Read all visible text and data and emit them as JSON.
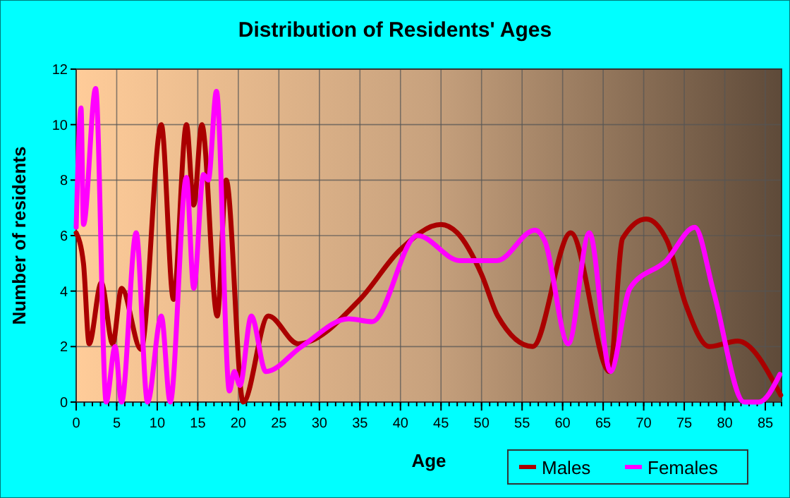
{
  "chart_data": {
    "type": "line",
    "title": "Distribution of Residents' Ages",
    "xlabel": "Age",
    "ylabel": "Number of residents",
    "xlim": [
      0,
      87
    ],
    "xticks": [
      0,
      5,
      10,
      15,
      20,
      25,
      30,
      35,
      40,
      45,
      50,
      55,
      60,
      65,
      70,
      75,
      80,
      85
    ],
    "ylim": [
      0,
      12
    ],
    "yticks": [
      0,
      2,
      4,
      6,
      8,
      10,
      12
    ],
    "grid": true,
    "legend": "bottom right",
    "line_style": "solid",
    "marker": "none",
    "series": [
      {
        "name": "Males",
        "color": "#aa0000",
        "x": [
          0,
          0.9,
          1.6,
          3.1,
          4.5,
          5.6,
          8,
          10.5,
          12,
          13.6,
          14.5,
          15.5,
          17.4,
          18.5,
          20.6,
          23.7,
          27.4,
          35,
          40,
          45,
          47,
          50,
          52,
          56.3,
          61,
          65.8,
          67.4,
          70.3,
          72.9,
          75.2,
          78.1,
          81.6,
          86.9
        ],
        "values": [
          6.1,
          5,
          2.1,
          4.3,
          2.1,
          4.1,
          1.9,
          10,
          3.7,
          10,
          7.1,
          10,
          3.1,
          8,
          0,
          3.1,
          2.1,
          3.7,
          5.5,
          6.4,
          6.1,
          4.6,
          3.1,
          2,
          6.1,
          1.1,
          5.9,
          6.6,
          5.8,
          3.5,
          2,
          2.2,
          0.25
        ]
      },
      {
        "name": "Females",
        "color": "#ff00ff",
        "x": [
          0,
          0.6,
          0.9,
          2.4,
          3.7,
          4.8,
          5.6,
          7.4,
          8.8,
          10.5,
          11.6,
          13.6,
          14.5,
          15.7,
          16.3,
          17.3,
          18.9,
          19.5,
          20.2,
          21.6,
          23.4,
          27.8,
          33.6,
          36.5,
          42.1,
          47.3,
          51.9,
          56.6,
          57.8,
          60.7,
          63.3,
          65.9,
          68.3,
          72.8,
          76.3,
          78.6,
          82.4,
          84.2,
          86.8
        ],
        "values": [
          6.3,
          10.6,
          6.4,
          11.3,
          0,
          2,
          0,
          6.1,
          0,
          3.1,
          0,
          8.1,
          4.1,
          8.2,
          8,
          11.2,
          0.4,
          1.1,
          0.6,
          3.1,
          1.1,
          2,
          3,
          2.9,
          6,
          5.1,
          5.1,
          6.2,
          5.8,
          2.1,
          6.1,
          1.1,
          4.1,
          5.1,
          6.3,
          4,
          0,
          0,
          1
        ]
      }
    ]
  }
}
